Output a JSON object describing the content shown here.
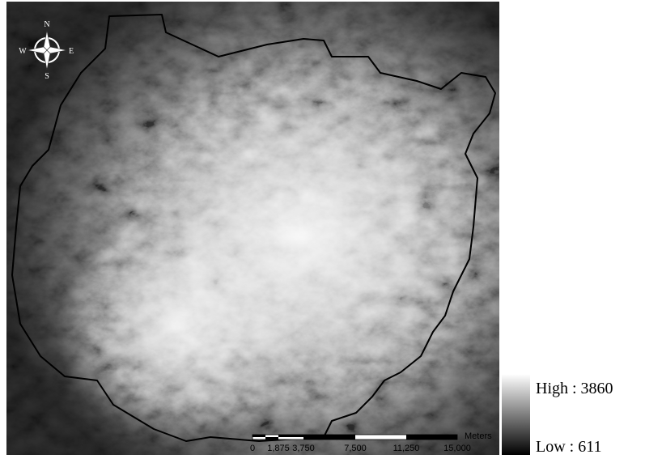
{
  "compass": {
    "north": "N",
    "south": "S",
    "east": "E",
    "west": "W"
  },
  "legend": {
    "high": "High : 3860",
    "low": "Low : 611"
  },
  "scale_bar": {
    "labels": [
      "0",
      "1,875",
      "3,750",
      "7,500",
      "11,250",
      "15,000"
    ],
    "unit": "Meters"
  }
}
